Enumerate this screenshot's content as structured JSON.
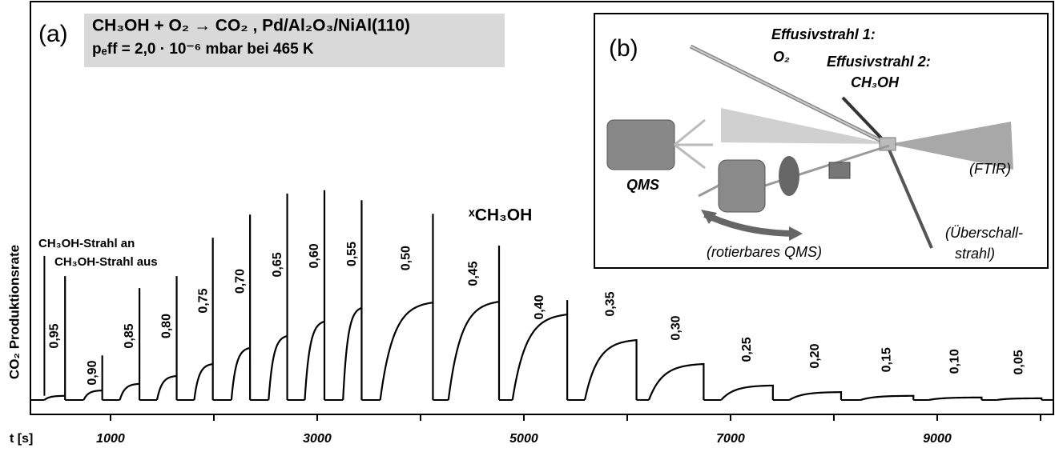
{
  "chart_data": {
    "type": "pulse",
    "header": {
      "panel": "(a)",
      "reaction": "CH₃OH + O₂ → CO₂ , Pd/Al₂O₃/NiAl(110)",
      "conditions": "pₑff = 2,0 · 10⁻⁶ mbar bei 465 K"
    },
    "y_label": "CO₂ Produktionsrate",
    "x_label": "t [s]",
    "series_label": "ˣCH₃OH",
    "beam_on": "CH₃OH-Strahl an",
    "beam_off": "CH₃OH-Strahl aus",
    "xlim": [
      225,
      10140
    ],
    "ylim": [
      0,
      100
    ],
    "xticks": [
      1000,
      3000,
      5000,
      7000,
      9000
    ],
    "xminor_ticks": [
      2000,
      4000,
      6000,
      8000,
      10000
    ],
    "color": "#000000",
    "baseline": 3.5,
    "pulses": [
      {
        "label": "0,95",
        "on": 360,
        "off": 560,
        "plateau": 4.5,
        "peak": 33.5,
        "start_peak": 38.4
      },
      {
        "label": "0,90",
        "on": 740,
        "off": 920,
        "plateau": 5.8,
        "peak": 14.3
      },
      {
        "label": "0,85",
        "on": 1090,
        "off": 1280,
        "plateau": 7.4,
        "peak": 30.6
      },
      {
        "label": "0,80",
        "on": 1450,
        "off": 1640,
        "plateau": 9.3,
        "peak": 33.5
      },
      {
        "label": "0,75",
        "on": 1810,
        "off": 1990,
        "plateau": 12.2,
        "peak": 42.8
      },
      {
        "label": "0,70",
        "on": 2170,
        "off": 2350,
        "plateau": 16.1,
        "peak": 48.4
      },
      {
        "label": "0,65",
        "on": 2530,
        "off": 2710,
        "plateau": 19.0,
        "peak": 53.5
      },
      {
        "label": "0,60",
        "on": 2880,
        "off": 3070,
        "plateau": 22.5,
        "peak": 54.3
      },
      {
        "label": "0,55",
        "on": 3250,
        "off": 3430,
        "plateau": 25.8,
        "peak": 51.9
      },
      {
        "label": "0,50",
        "on": 3610,
        "off": 4120,
        "plateau": 27.1,
        "peak": 48.6
      },
      {
        "label": "0,45",
        "on": 4270,
        "off": 4760,
        "plateau": 27.3,
        "peak": 40.9
      },
      {
        "label": "0,40",
        "on": 4890,
        "off": 5420,
        "plateau": 24.2,
        "peak": 27.7
      },
      {
        "label": "0,35",
        "on": 5590,
        "off": 6090,
        "plateau": 18.0
      },
      {
        "label": "0,30",
        "on": 6210,
        "off": 6740,
        "plateau": 12.2
      },
      {
        "label": "0,25",
        "on": 6910,
        "off": 7410,
        "plateau": 7.0
      },
      {
        "label": "0,20",
        "on": 7570,
        "off": 8070,
        "plateau": 5.4
      },
      {
        "label": "0,15",
        "on": 8260,
        "off": 8770,
        "plateau": 4.5
      },
      {
        "label": "0,10",
        "on": 8920,
        "off": 9430,
        "plateau": 4.1
      },
      {
        "label": "0,05",
        "on": 9580,
        "off": 10010,
        "plateau": 3.9
      }
    ],
    "inset": {
      "panel": "(b)",
      "beam1": "Effusivstrahl 1:",
      "beam1_gas": "O₂",
      "beam2": "Effusivstrahl 2:",
      "beam2_gas": "CH₃OH",
      "qms": "QMS",
      "ftir": "(FTIR)",
      "supersonic_1": "(Überschall-",
      "supersonic_2": "strahl)",
      "rotatable": "(rotierbares QMS)"
    }
  }
}
